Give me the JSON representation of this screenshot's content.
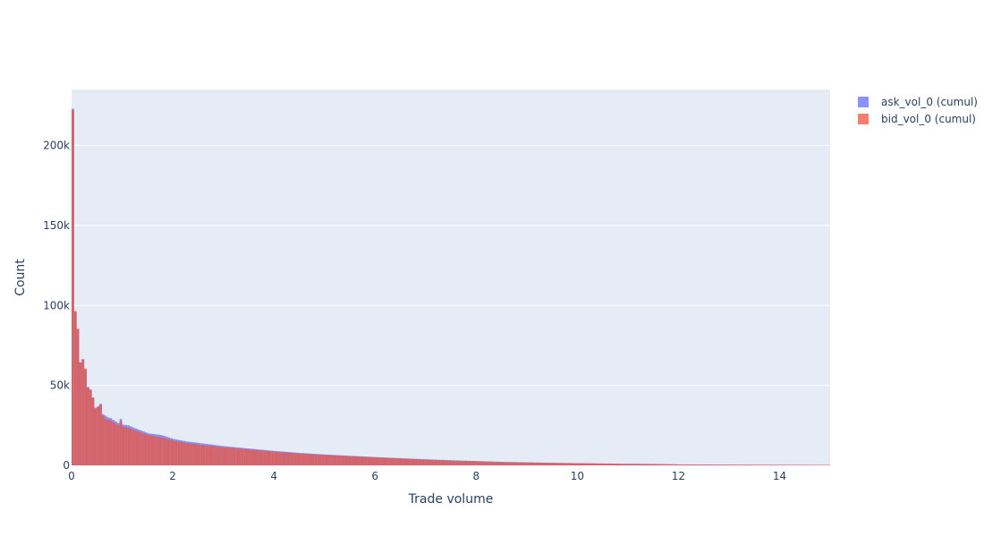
{
  "chart_data": {
    "type": "bar",
    "subtype": "overlaid histogram",
    "xlabel": "Trade volume",
    "ylabel": "Count",
    "xlim": [
      0,
      15
    ],
    "ylim": [
      0,
      235000
    ],
    "x_ticks": [
      0,
      2,
      4,
      6,
      8,
      10,
      12,
      14
    ],
    "x_tick_labels": [
      "0",
      "2",
      "4",
      "6",
      "8",
      "10",
      "12",
      "14"
    ],
    "y_ticks": [
      0,
      50000,
      100000,
      150000,
      200000
    ],
    "y_tick_labels": [
      "0",
      "50k",
      "100k",
      "150k",
      "200k"
    ],
    "grid": true,
    "legend_position": "top-right",
    "bin_width": 0.05,
    "series": [
      {
        "name": "ask_vol_0 (cumul)",
        "color": "#636efa",
        "opacity": 0.75,
        "bins": [
          {
            "x": 0.0,
            "y": 223000
          },
          {
            "x": 0.05,
            "y": 96000
          },
          {
            "x": 0.1,
            "y": 85000
          },
          {
            "x": 0.15,
            "y": 64000
          },
          {
            "x": 0.2,
            "y": 66000
          },
          {
            "x": 0.25,
            "y": 60000
          },
          {
            "x": 0.3,
            "y": 49000
          },
          {
            "x": 0.35,
            "y": 47000
          },
          {
            "x": 0.4,
            "y": 42000
          },
          {
            "x": 0.45,
            "y": 36000
          },
          {
            "x": 0.5,
            "y": 37000
          },
          {
            "x": 0.55,
            "y": 38500
          },
          {
            "x": 0.6,
            "y": 32000
          },
          {
            "x": 0.65,
            "y": 31000
          },
          {
            "x": 0.7,
            "y": 30000
          },
          {
            "x": 0.75,
            "y": 29500
          },
          {
            "x": 0.8,
            "y": 28500
          },
          {
            "x": 0.85,
            "y": 27500
          },
          {
            "x": 0.9,
            "y": 26500
          },
          {
            "x": 0.95,
            "y": 29000
          },
          {
            "x": 1.0,
            "y": 25500
          },
          {
            "x": 1.1,
            "y": 25000
          },
          {
            "x": 1.25,
            "y": 23000
          },
          {
            "x": 1.5,
            "y": 20000
          },
          {
            "x": 1.75,
            "y": 19000
          },
          {
            "x": 2.0,
            "y": 16500
          },
          {
            "x": 2.25,
            "y": 15000
          },
          {
            "x": 2.5,
            "y": 14000
          },
          {
            "x": 2.75,
            "y": 13000
          },
          {
            "x": 3.0,
            "y": 12000
          },
          {
            "x": 3.5,
            "y": 10500
          },
          {
            "x": 4.0,
            "y": 9000
          },
          {
            "x": 4.5,
            "y": 7800
          },
          {
            "x": 5.0,
            "y": 6800
          },
          {
            "x": 5.5,
            "y": 6000
          },
          {
            "x": 6.0,
            "y": 5200
          },
          {
            "x": 6.5,
            "y": 4500
          },
          {
            "x": 7.0,
            "y": 3800
          },
          {
            "x": 7.5,
            "y": 3200
          },
          {
            "x": 8.0,
            "y": 2700
          },
          {
            "x": 8.5,
            "y": 2200
          },
          {
            "x": 9.0,
            "y": 1900
          },
          {
            "x": 9.5,
            "y": 1600
          },
          {
            "x": 10.0,
            "y": 1400
          },
          {
            "x": 10.5,
            "y": 1200
          },
          {
            "x": 11.0,
            "y": 1000
          },
          {
            "x": 11.5,
            "y": 900
          },
          {
            "x": 12.0,
            "y": 600
          },
          {
            "x": 13.0,
            "y": 450
          },
          {
            "x": 14.0,
            "y": 350
          },
          {
            "x": 15.0,
            "y": 300
          }
        ]
      },
      {
        "name": "bid_vol_0 (cumul)",
        "color": "#ef553b",
        "opacity": 0.75,
        "bins": [
          {
            "x": 0.0,
            "y": 222000
          },
          {
            "x": 0.05,
            "y": 96500
          },
          {
            "x": 0.1,
            "y": 85500
          },
          {
            "x": 0.15,
            "y": 64500
          },
          {
            "x": 0.2,
            "y": 66500
          },
          {
            "x": 0.25,
            "y": 60500
          },
          {
            "x": 0.3,
            "y": 48500
          },
          {
            "x": 0.35,
            "y": 47500
          },
          {
            "x": 0.4,
            "y": 42500
          },
          {
            "x": 0.45,
            "y": 35500
          },
          {
            "x": 0.5,
            "y": 36500
          },
          {
            "x": 0.55,
            "y": 38000
          },
          {
            "x": 0.6,
            "y": 31000
          },
          {
            "x": 0.65,
            "y": 29000
          },
          {
            "x": 0.7,
            "y": 28500
          },
          {
            "x": 0.75,
            "y": 28000
          },
          {
            "x": 0.8,
            "y": 27000
          },
          {
            "x": 0.85,
            "y": 26000
          },
          {
            "x": 0.9,
            "y": 25000
          },
          {
            "x": 0.95,
            "y": 27500
          },
          {
            "x": 1.0,
            "y": 24000
          },
          {
            "x": 1.1,
            "y": 23500
          },
          {
            "x": 1.25,
            "y": 21500
          },
          {
            "x": 1.5,
            "y": 19000
          },
          {
            "x": 1.75,
            "y": 17500
          },
          {
            "x": 2.0,
            "y": 15500
          },
          {
            "x": 2.25,
            "y": 14000
          },
          {
            "x": 2.5,
            "y": 13000
          },
          {
            "x": 2.75,
            "y": 12200
          },
          {
            "x": 3.0,
            "y": 11300
          },
          {
            "x": 3.5,
            "y": 10000
          },
          {
            "x": 4.0,
            "y": 8600
          },
          {
            "x": 4.5,
            "y": 7400
          },
          {
            "x": 5.0,
            "y": 6500
          },
          {
            "x": 5.5,
            "y": 5700
          },
          {
            "x": 6.0,
            "y": 5000
          },
          {
            "x": 6.5,
            "y": 4300
          },
          {
            "x": 7.0,
            "y": 3600
          },
          {
            "x": 7.5,
            "y": 3000
          },
          {
            "x": 8.0,
            "y": 2600
          },
          {
            "x": 8.5,
            "y": 2100
          },
          {
            "x": 9.0,
            "y": 1800
          },
          {
            "x": 9.5,
            "y": 1500
          },
          {
            "x": 10.0,
            "y": 1300
          },
          {
            "x": 10.5,
            "y": 1100
          },
          {
            "x": 11.0,
            "y": 950
          },
          {
            "x": 11.5,
            "y": 850
          },
          {
            "x": 12.0,
            "y": 550
          },
          {
            "x": 13.0,
            "y": 420
          },
          {
            "x": 14.0,
            "y": 330
          },
          {
            "x": 15.0,
            "y": 280
          }
        ]
      }
    ]
  }
}
